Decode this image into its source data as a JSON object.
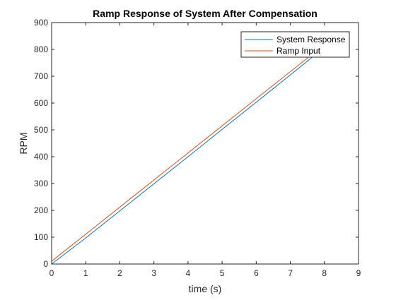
{
  "chart_data": {
    "type": "line",
    "title": "Ramp Response of System After Compensation",
    "xlabel": "time (s)",
    "ylabel": "RPM",
    "xlim": [
      0,
      9
    ],
    "ylim": [
      0,
      900
    ],
    "xticks": [
      0,
      1,
      2,
      3,
      4,
      5,
      6,
      7,
      8,
      9
    ],
    "yticks": [
      0,
      100,
      200,
      300,
      400,
      500,
      600,
      700,
      800,
      900
    ],
    "grid": false,
    "legend_position": "top-right",
    "series": [
      {
        "name": "System Response",
        "color": "#0072BD",
        "x": [
          0,
          1,
          2,
          3,
          4,
          5,
          6,
          7,
          7.7
        ],
        "y": [
          0,
          97,
          198,
          299,
          400,
          502,
          603,
          705,
          777
        ]
      },
      {
        "name": "Ramp Input",
        "color": "#D95319",
        "x": [
          0,
          1,
          2,
          3,
          4,
          5,
          6,
          7,
          7.7
        ],
        "y": [
          10,
          111,
          212,
          313,
          414,
          515,
          616,
          717,
          788
        ]
      }
    ]
  }
}
